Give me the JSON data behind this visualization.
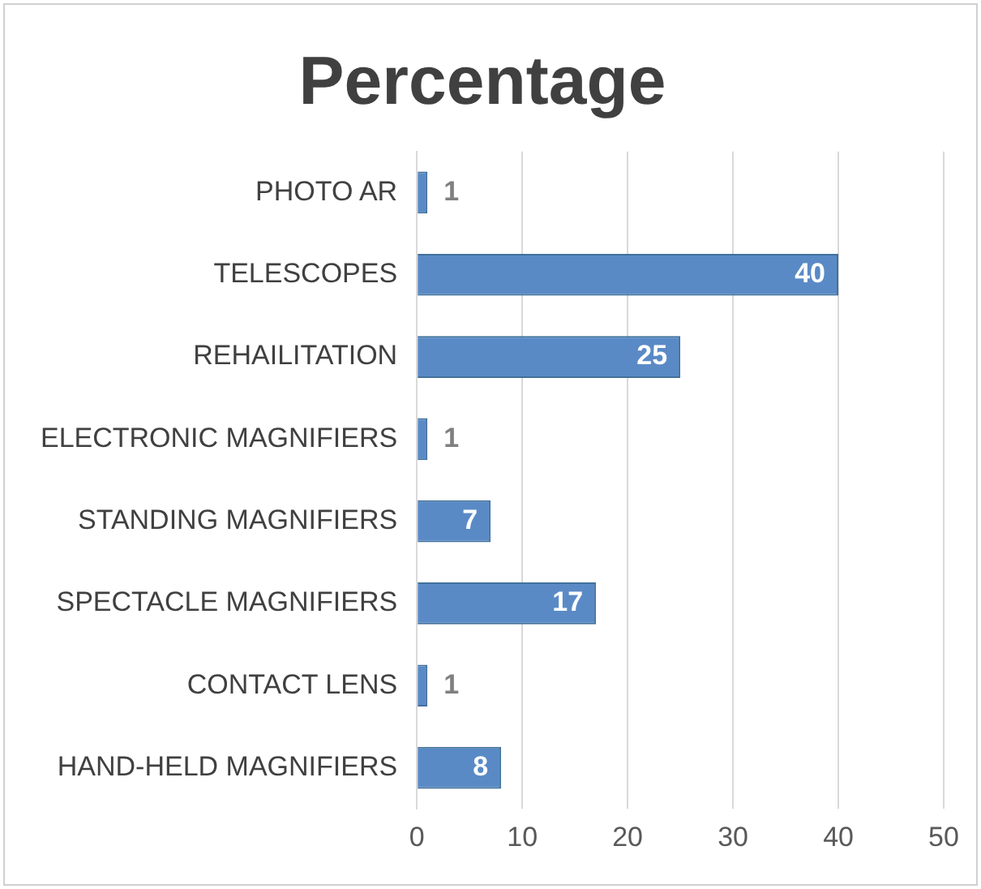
{
  "chart_data": {
    "type": "bar",
    "orientation": "horizontal",
    "title": "Percentage",
    "categories": [
      "PHOTO AR",
      "TELESCOPES",
      "REHAILITATION",
      "ELECTRONIC MAGNIFIERS",
      "STANDING MAGNIFIERS",
      "SPECTACLE MAGNIFIERS",
      "CONTACT LENS",
      "HAND-HELD MAGNIFIERS"
    ],
    "values": [
      1,
      40,
      25,
      1,
      7,
      17,
      1,
      8
    ],
    "color": "#5a8ac6",
    "xlim": [
      0,
      50
    ],
    "xticks": [
      0,
      10,
      20,
      30,
      40,
      50
    ],
    "grid": "x",
    "legend": false,
    "data_labels": true
  }
}
